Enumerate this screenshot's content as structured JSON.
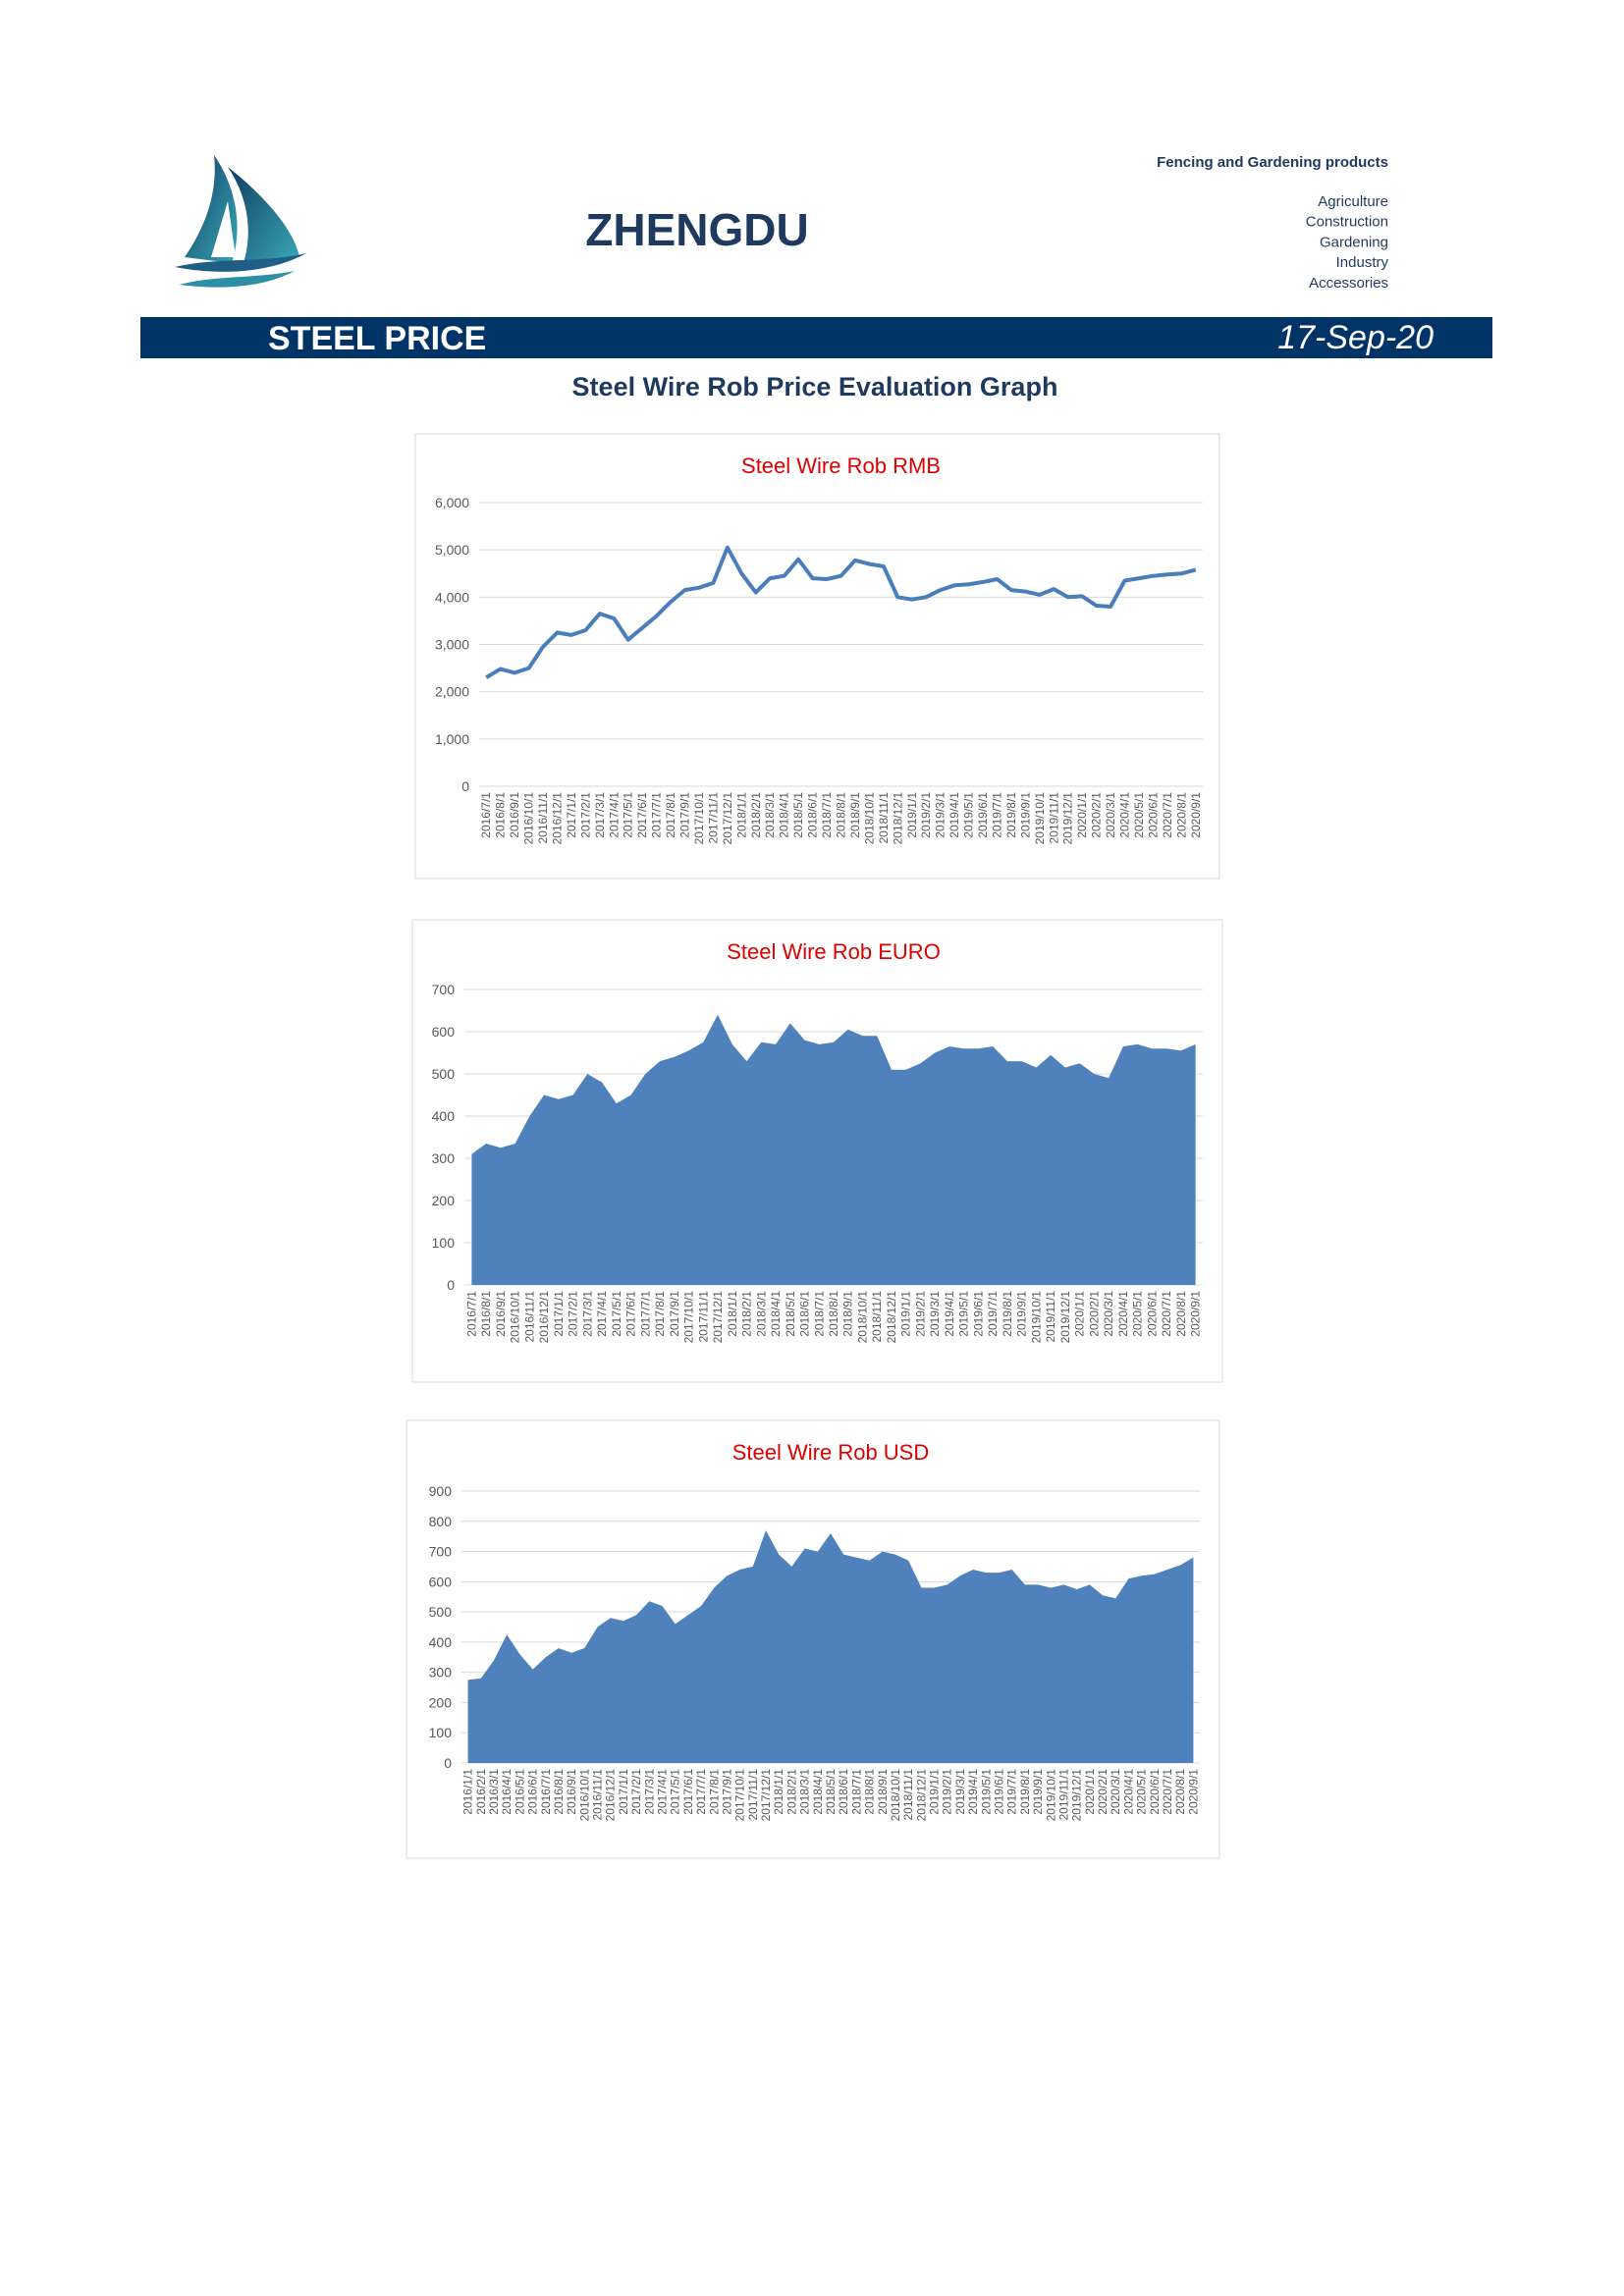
{
  "header": {
    "company": "ZHENGDU",
    "tagline": "Fencing and Gardening products",
    "sectors": [
      "Agriculture",
      "Construction",
      "Gardening",
      "Industry",
      "Accessories"
    ]
  },
  "banner": {
    "title": "STEEL PRICE",
    "date": "17-Sep-20"
  },
  "heading": "Steel Wire Rob Price Evaluation Graph",
  "chart_data": [
    {
      "type": "line",
      "title": "Steel Wire Rob RMB",
      "color": "#4a7ebb",
      "grid": true,
      "categories": [
        "2016/7/1",
        "2016/8/1",
        "2016/9/1",
        "2016/10/1",
        "2016/11/1",
        "2016/12/1",
        "2017/1/1",
        "2017/2/1",
        "2017/3/1",
        "2017/4/1",
        "2017/5/1",
        "2017/6/1",
        "2017/7/1",
        "2017/8/1",
        "2017/9/1",
        "2017/10/1",
        "2017/11/1",
        "2017/12/1",
        "2018/1/1",
        "2018/2/1",
        "2018/3/1",
        "2018/4/1",
        "2018/5/1",
        "2018/6/1",
        "2018/7/1",
        "2018/8/1",
        "2018/9/1",
        "2018/10/1",
        "2018/11/1",
        "2018/12/1",
        "2019/1/1",
        "2019/2/1",
        "2019/3/1",
        "2019/4/1",
        "2019/5/1",
        "2019/6/1",
        "2019/7/1",
        "2019/8/1",
        "2019/9/1",
        "2019/10/1",
        "2019/11/1",
        "2019/12/1",
        "2020/1/1",
        "2020/2/1",
        "2020/3/1",
        "2020/4/1",
        "2020/5/1",
        "2020/6/1",
        "2020/7/1",
        "2020/8/1",
        "2020/9/1"
      ],
      "values": [
        2300,
        2480,
        2400,
        2500,
        2950,
        3250,
        3200,
        3300,
        3650,
        3550,
        3100,
        3350,
        3600,
        3900,
        4150,
        4200,
        4300,
        5050,
        4500,
        4100,
        4400,
        4450,
        4800,
        4400,
        4380,
        4450,
        4780,
        4700,
        4650,
        4000,
        3950,
        4000,
        4150,
        4250,
        4270,
        4320,
        4380,
        4150,
        4120,
        4050,
        4170,
        4000,
        4020,
        3820,
        3800,
        4350,
        4400,
        4450,
        4480,
        4500,
        4580
      ],
      "ylim": [
        0,
        6000
      ],
      "yticks": [
        0,
        {
          "value": 1000,
          "label": "1,000"
        },
        {
          "value": 2000,
          "label": "2,000"
        },
        {
          "value": 3000,
          "label": "3,000"
        },
        {
          "value": 4000,
          "label": "4,000"
        },
        {
          "value": 5000,
          "label": "5,000"
        },
        {
          "value": 6000,
          "label": "6,000"
        }
      ]
    },
    {
      "type": "area",
      "title": "Steel Wire Rob EURO",
      "color": "#4f81bd",
      "grid": true,
      "categories": [
        "2016/7/1",
        "2016/8/1",
        "2016/9/1",
        "2016/10/1",
        "2016/11/1",
        "2016/12/1",
        "2017/1/1",
        "2017/2/1",
        "2017/3/1",
        "2017/4/1",
        "2017/5/1",
        "2017/6/1",
        "2017/7/1",
        "2017/8/1",
        "2017/9/1",
        "2017/10/1",
        "2017/11/1",
        "2017/12/1",
        "2018/1/1",
        "2018/2/1",
        "2018/3/1",
        "2018/4/1",
        "2018/5/1",
        "2018/6/1",
        "2018/7/1",
        "2018/8/1",
        "2018/9/1",
        "2018/10/1",
        "2018/11/1",
        "2018/12/1",
        "2019/1/1",
        "2019/2/1",
        "2019/3/1",
        "2019/4/1",
        "2019/5/1",
        "2019/6/1",
        "2019/7/1",
        "2019/8/1",
        "2019/9/1",
        "2019/10/1",
        "2019/11/1",
        "2019/12/1",
        "2020/1/1",
        "2020/2/1",
        "2020/3/1",
        "2020/4/1",
        "2020/5/1",
        "2020/6/1",
        "2020/7/1",
        "2020/8/1",
        "2020/9/1"
      ],
      "values": [
        310,
        335,
        325,
        335,
        400,
        450,
        440,
        450,
        500,
        480,
        430,
        450,
        500,
        530,
        540,
        555,
        575,
        640,
        570,
        530,
        575,
        570,
        620,
        580,
        570,
        575,
        605,
        590,
        590,
        510,
        510,
        525,
        550,
        565,
        560,
        560,
        565,
        530,
        530,
        515,
        545,
        515,
        525,
        500,
        490,
        565,
        570,
        560,
        560,
        555,
        570
      ],
      "ylim": [
        0,
        700
      ],
      "yticks": [
        0,
        100,
        200,
        300,
        400,
        500,
        600,
        700
      ]
    },
    {
      "type": "area",
      "title": "Steel Wire Rob USD",
      "color": "#4f81bd",
      "grid": true,
      "categories": [
        "2016/1/1",
        "2016/2/1",
        "2016/3/1",
        "2016/4/1",
        "2016/5/1",
        "2016/6/1",
        "2016/7/1",
        "2016/8/1",
        "2016/9/1",
        "2016/10/1",
        "2016/11/1",
        "2016/12/1",
        "2017/1/1",
        "2017/2/1",
        "2017/3/1",
        "2017/4/1",
        "2017/5/1",
        "2017/6/1",
        "2017/7/1",
        "2017/8/1",
        "2017/9/1",
        "2017/10/1",
        "2017/11/1",
        "2017/12/1",
        "2018/1/1",
        "2018/2/1",
        "2018/3/1",
        "2018/4/1",
        "2018/5/1",
        "2018/6/1",
        "2018/7/1",
        "2018/8/1",
        "2018/9/1",
        "2018/10/1",
        "2018/11/1",
        "2018/12/1",
        "2019/1/1",
        "2019/2/1",
        "2019/3/1",
        "2019/4/1",
        "2019/5/1",
        "2019/6/1",
        "2019/7/1",
        "2019/8/1",
        "2019/9/1",
        "2019/10/1",
        "2019/11/1",
        "2019/12/1",
        "2020/1/1",
        "2020/2/1",
        "2020/3/1",
        "2020/4/1",
        "2020/5/1",
        "2020/6/1",
        "2020/7/1",
        "2020/8/1",
        "2020/9/1"
      ],
      "values": [
        275,
        280,
        340,
        425,
        360,
        310,
        350,
        380,
        365,
        380,
        450,
        480,
        470,
        490,
        535,
        520,
        460,
        490,
        520,
        580,
        620,
        640,
        650,
        770,
        690,
        650,
        710,
        700,
        760,
        690,
        680,
        670,
        700,
        690,
        670,
        580,
        580,
        590,
        620,
        640,
        630,
        630,
        640,
        590,
        590,
        580,
        590,
        575,
        590,
        555,
        545,
        610,
        620,
        625,
        640,
        655,
        680
      ],
      "ylim": [
        0,
        900
      ],
      "yticks": [
        0,
        100,
        200,
        300,
        400,
        500,
        600,
        700,
        800,
        900
      ]
    }
  ]
}
